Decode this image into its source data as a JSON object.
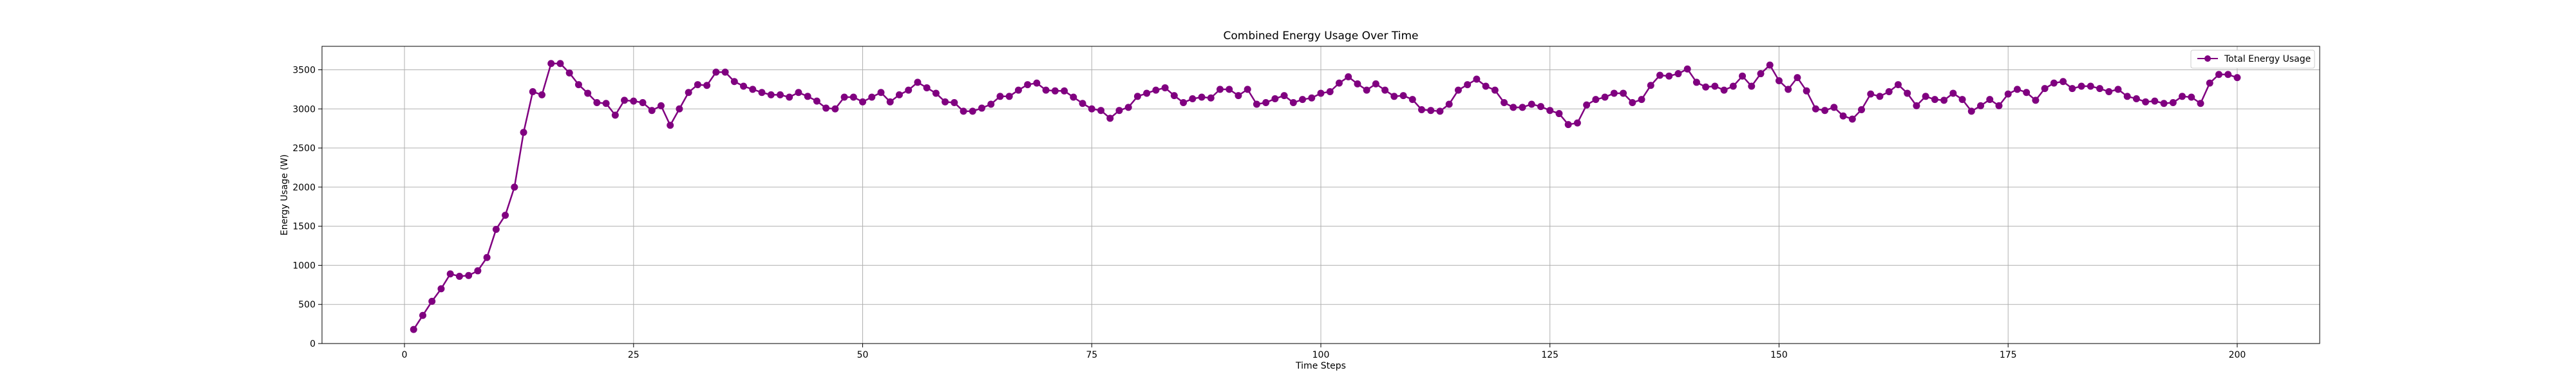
{
  "chart_data": {
    "type": "line",
    "title": "Combined Energy Usage Over Time",
    "xlabel": "Time Steps",
    "ylabel": "Energy Usage (W)",
    "xlim": [
      -9,
      209
    ],
    "ylim": [
      0,
      3800
    ],
    "xticks": [
      0,
      25,
      50,
      75,
      100,
      125,
      150,
      175,
      200
    ],
    "yticks": [
      0,
      500,
      1000,
      1500,
      2000,
      2500,
      3000,
      3500
    ],
    "grid": true,
    "legend_position": "top-right",
    "colors": {
      "series": "#800080",
      "grid": "#b0b0b0",
      "axes": "#000000"
    },
    "marker": "circle",
    "series": [
      {
        "name": "Total Energy Usage",
        "x": [
          1,
          2,
          3,
          4,
          5,
          6,
          7,
          8,
          9,
          10,
          11,
          12,
          13,
          14,
          15,
          16,
          17,
          18,
          19,
          20,
          21,
          22,
          23,
          24,
          25,
          26,
          27,
          28,
          29,
          30,
          31,
          32,
          33,
          34,
          35,
          36,
          37,
          38,
          39,
          40,
          41,
          42,
          43,
          44,
          45,
          46,
          47,
          48,
          49,
          50,
          51,
          52,
          53,
          54,
          55,
          56,
          57,
          58,
          59,
          60,
          61,
          62,
          63,
          64,
          65,
          66,
          67,
          68,
          69,
          70,
          71,
          72,
          73,
          74,
          75,
          76,
          77,
          78,
          79,
          80,
          81,
          82,
          83,
          84,
          85,
          86,
          87,
          88,
          89,
          90,
          91,
          92,
          93,
          94,
          95,
          96,
          97,
          98,
          99,
          100,
          101,
          102,
          103,
          104,
          105,
          106,
          107,
          108,
          109,
          110,
          111,
          112,
          113,
          114,
          115,
          116,
          117,
          118,
          119,
          120,
          121,
          122,
          123,
          124,
          125,
          126,
          127,
          128,
          129,
          130,
          131,
          132,
          133,
          134,
          135,
          136,
          137,
          138,
          139,
          140,
          141,
          142,
          143,
          144,
          145,
          146,
          147,
          148,
          149,
          150,
          151,
          152,
          153,
          154,
          155,
          156,
          157,
          158,
          159,
          160,
          161,
          162,
          163,
          164,
          165,
          166,
          167,
          168,
          169,
          170,
          171,
          172,
          173,
          174,
          175,
          176,
          177,
          178,
          179,
          180,
          181,
          182,
          183,
          184,
          185,
          186,
          187,
          188,
          189,
          190,
          191,
          192,
          193,
          194,
          195,
          196,
          197,
          198,
          199,
          200
        ],
        "values": [
          180,
          360,
          540,
          700,
          890,
          860,
          870,
          930,
          1100,
          1460,
          1640,
          2000,
          2700,
          3220,
          3180,
          3580,
          3580,
          3460,
          3310,
          3200,
          3080,
          3070,
          2920,
          3110,
          3100,
          3080,
          2980,
          3040,
          2790,
          3000,
          3210,
          3310,
          3300,
          3470,
          3470,
          3350,
          3290,
          3250,
          3210,
          3180,
          3180,
          3150,
          3210,
          3160,
          3100,
          3010,
          3000,
          3150,
          3150,
          3090,
          3150,
          3210,
          3090,
          3180,
          3240,
          3340,
          3270,
          3200,
          3090,
          3080,
          2970,
          2970,
          3010,
          3060,
          3160,
          3160,
          3240,
          3310,
          3330,
          3240,
          3230,
          3230,
          3150,
          3070,
          3000,
          2980,
          2880,
          2980,
          3020,
          3160,
          3200,
          3240,
          3270,
          3170,
          3080,
          3130,
          3150,
          3140,
          3250,
          3250,
          3170,
          3250,
          3060,
          3080,
          3130,
          3170,
          3080,
          3120,
          3140,
          3200,
          3220,
          3330,
          3410,
          3320,
          3240,
          3320,
          3240,
          3160,
          3170,
          3120,
          2990,
          2980,
          2970,
          3060,
          3240,
          3310,
          3380,
          3290,
          3240,
          3080,
          3020,
          3020,
          3060,
          3030,
          2980,
          2940,
          2800,
          2820,
          3050,
          3120,
          3150,
          3200,
          3200,
          3080,
          3120,
          3300,
          3430,
          3420,
          3450,
          3510,
          3340,
          3280,
          3290,
          3240,
          3290,
          3420,
          3290,
          3450,
          3560,
          3360,
          3250,
          3400,
          3230,
          3000,
          2980,
          3020,
          2910,
          2870,
          2990,
          3190,
          3160,
          3220,
          3310,
          3200,
          3040,
          3160,
          3120,
          3110,
          3200,
          3120,
          2970,
          3040,
          3120,
          3040,
          3190,
          3250,
          3210,
          3110,
          3260,
          3330,
          3350,
          3260,
          3290,
          3290,
          3260,
          3220,
          3250,
          3160,
          3130,
          3090,
          3100,
          3070,
          3080,
          3160,
          3150,
          3070,
          3330,
          3440,
          3440,
          3400
        ]
      }
    ]
  }
}
